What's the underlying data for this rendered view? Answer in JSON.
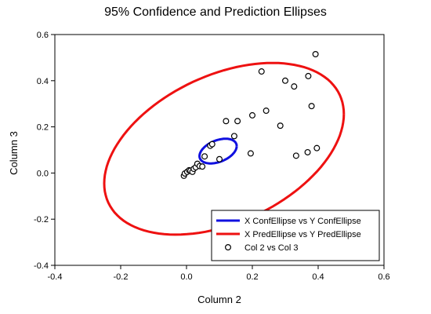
{
  "chart_data": {
    "type": "scatter",
    "title": "95% Confidence and Prediction Ellipses",
    "xlabel": "Column 2",
    "ylabel": "Column 3",
    "xlim": [
      -0.4,
      0.6
    ],
    "ylim": [
      -0.4,
      0.6
    ],
    "x_ticks": [
      "-0.4",
      "-0.2",
      "0.0",
      "0.2",
      "0.4",
      "0.6"
    ],
    "y_ticks": [
      "-0.4",
      "-0.2",
      "0.0",
      "0.2",
      "0.4",
      "0.6"
    ],
    "grid": false,
    "legend_position": "bottom-right",
    "series": [
      {
        "name": "X ConfEllipse vs Y ConfEllipse",
        "kind": "ellipse",
        "color": "#1010e0",
        "center": [
          0.096,
          0.095
        ],
        "extent_x": [
          0.057,
          0.17
        ],
        "extent_y": [
          0.05,
          0.157
        ]
      },
      {
        "name": "X PredEllipse vs Y PredEllipse",
        "kind": "ellipse",
        "color": "#ee1111",
        "center": [
          0.114,
          0.105
        ],
        "extent_x": [
          -0.256,
          0.472
        ],
        "extent_y": [
          -0.266,
          0.478
        ]
      },
      {
        "name": "Col 2 vs Col 3",
        "kind": "points",
        "color": "#000000",
        "points": [
          [
            -0.008,
            -0.012
          ],
          [
            -0.005,
            -0.002
          ],
          [
            0.002,
            0.005
          ],
          [
            0.008,
            0.012
          ],
          [
            0.012,
            0.01
          ],
          [
            0.018,
            0.005
          ],
          [
            0.022,
            0.018
          ],
          [
            0.028,
            0.025
          ],
          [
            0.033,
            0.04
          ],
          [
            0.04,
            0.03
          ],
          [
            0.048,
            0.028
          ],
          [
            0.055,
            0.072
          ],
          [
            0.072,
            0.118
          ],
          [
            0.078,
            0.125
          ],
          [
            0.1,
            0.06
          ],
          [
            0.12,
            0.225
          ],
          [
            0.145,
            0.16
          ],
          [
            0.155,
            0.225
          ],
          [
            0.195,
            0.085
          ],
          [
            0.2,
            0.25
          ],
          [
            0.228,
            0.44
          ],
          [
            0.242,
            0.27
          ],
          [
            0.285,
            0.205
          ],
          [
            0.3,
            0.4
          ],
          [
            0.327,
            0.375
          ],
          [
            0.333,
            0.075
          ],
          [
            0.368,
            0.09
          ],
          [
            0.37,
            0.42
          ],
          [
            0.38,
            0.29
          ],
          [
            0.392,
            0.515
          ],
          [
            0.396,
            0.108
          ]
        ]
      }
    ]
  }
}
